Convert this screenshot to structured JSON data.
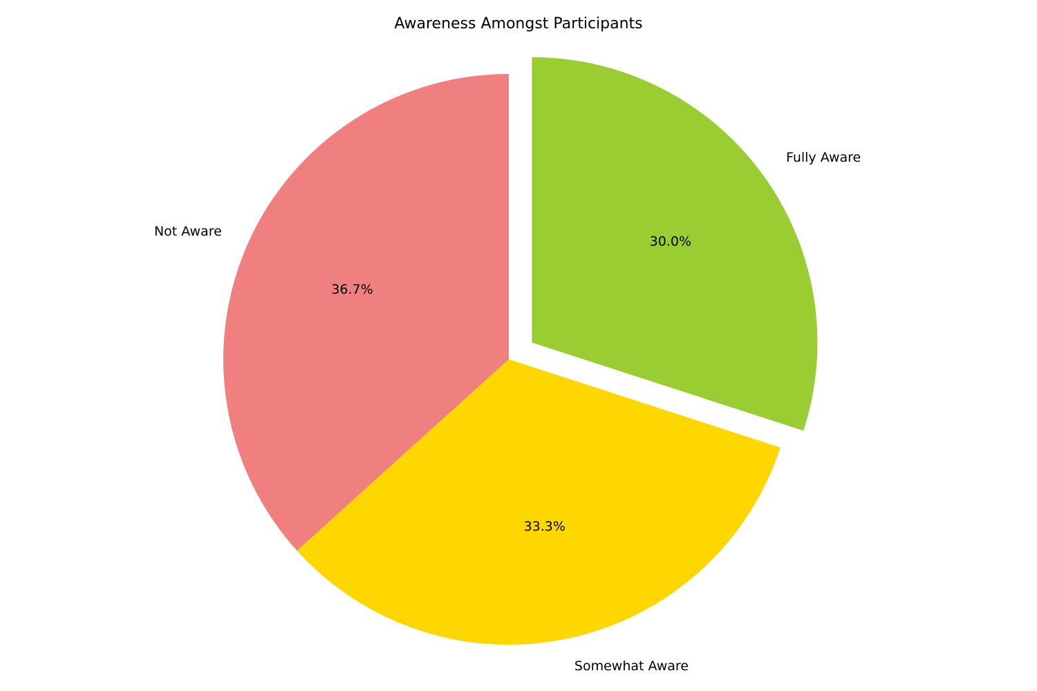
{
  "chart_data": {
    "type": "pie",
    "title": "Awareness Amongst Participants",
    "categories": [
      "Not Aware",
      "Somewhat Aware",
      "Fully Aware"
    ],
    "values": [
      36.7,
      33.3,
      30.0
    ],
    "percent_labels": [
      "36.7%",
      "33.3%",
      "30.0%"
    ],
    "colors": [
      "#f08080",
      "#ffd700",
      "#9acd32"
    ],
    "exploded": [
      false,
      false,
      true
    ],
    "start_angle_deg": 90,
    "direction": "counterclockwise"
  }
}
